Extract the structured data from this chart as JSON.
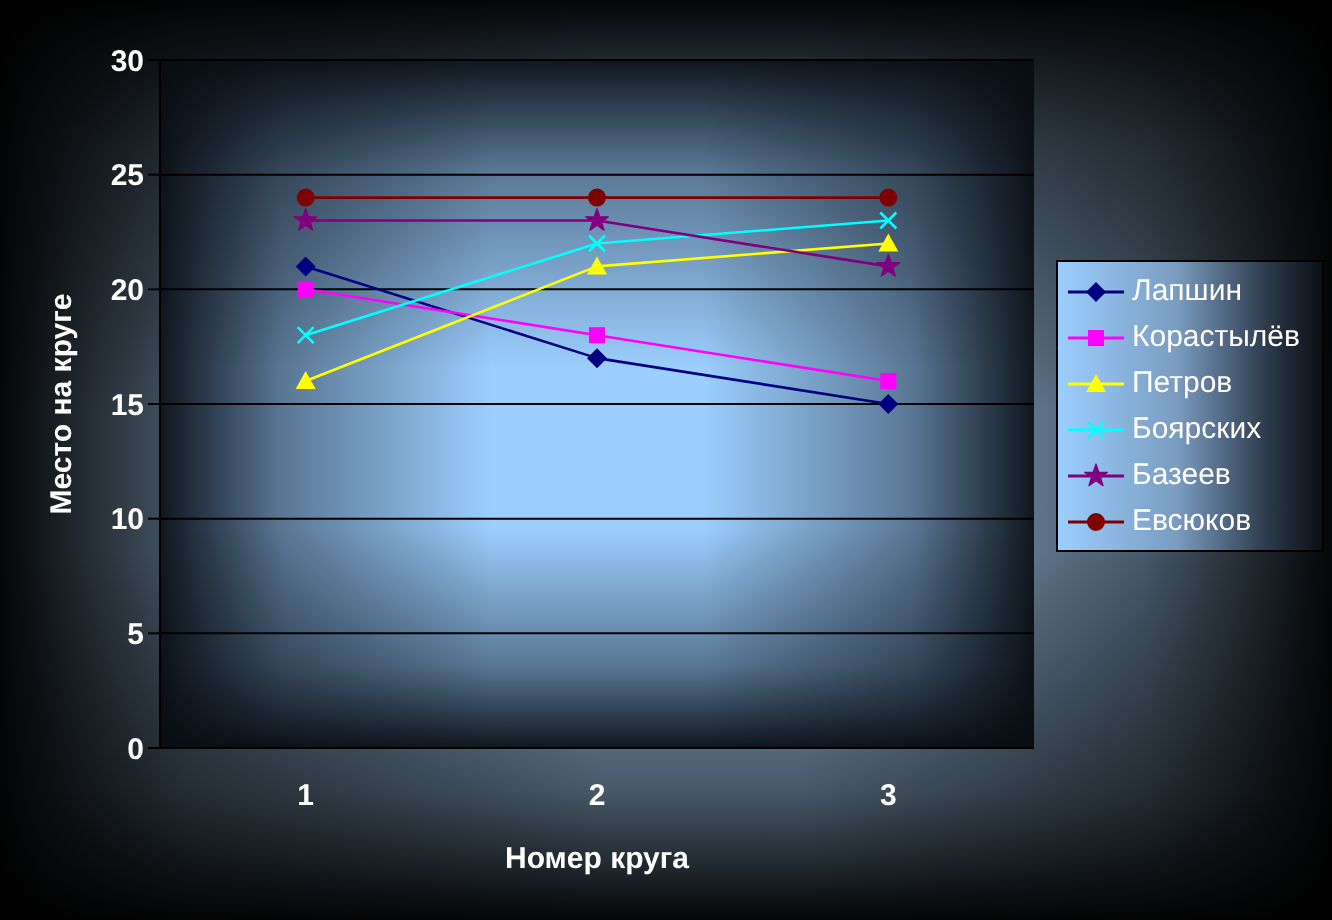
{
  "chart_data": {
    "type": "line",
    "xlabel": "Номер круга",
    "ylabel": "Место на круге",
    "categories": [
      "1",
      "2",
      "3"
    ],
    "ylim": [
      0,
      30
    ],
    "yticks": [
      0,
      5,
      10,
      15,
      20,
      25,
      30
    ],
    "grid": "y",
    "legend": "right",
    "series": [
      {
        "name": "Лапшин",
        "color": "#000080",
        "marker": "diamond",
        "values": [
          21,
          17,
          15
        ]
      },
      {
        "name": "Корастылёв",
        "color": "#ff00ff",
        "marker": "square",
        "values": [
          20,
          18,
          16
        ]
      },
      {
        "name": "Петров",
        "color": "#ffff00",
        "marker": "triangle",
        "values": [
          16,
          21,
          22
        ]
      },
      {
        "name": "Боярских",
        "color": "#00ffff",
        "marker": "cross",
        "values": [
          18,
          22,
          23
        ]
      },
      {
        "name": "Базеев",
        "color": "#800080",
        "marker": "star",
        "values": [
          23,
          23,
          21
        ]
      },
      {
        "name": "Евсюков",
        "color": "#800000",
        "marker": "circle",
        "values": [
          24,
          24,
          24
        ]
      }
    ]
  }
}
